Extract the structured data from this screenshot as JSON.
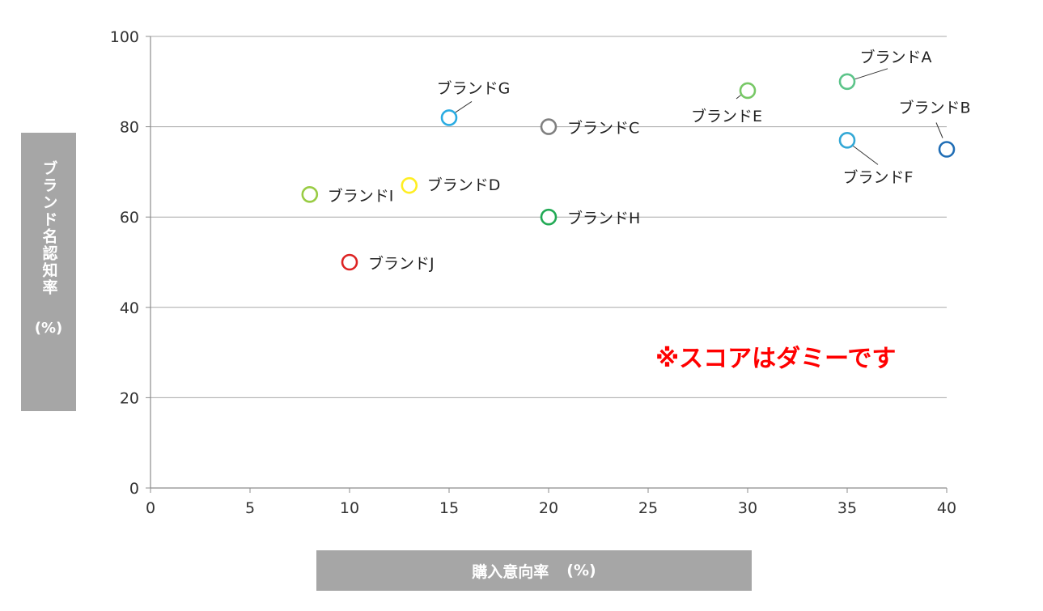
{
  "chart_data": {
    "type": "scatter",
    "title": "",
    "xlabel": "購入意向率",
    "xlabel_unit": "(%)",
    "ylabel": "ブランド名認知率",
    "ylabel_unit": "(%)",
    "xlim": [
      0,
      40
    ],
    "ylim": [
      0,
      100
    ],
    "x_ticks": [
      0,
      5,
      10,
      15,
      20,
      25,
      30,
      35,
      40
    ],
    "y_ticks": [
      0,
      20,
      40,
      60,
      80,
      100
    ],
    "x_tick_labels": [
      "0",
      "5",
      "10",
      "15",
      "20",
      "25",
      "30",
      "35",
      "40"
    ],
    "y_tick_labels": [
      "0",
      "20",
      "40",
      "60",
      "80",
      "100"
    ],
    "grid": "horizontal",
    "legend": "none",
    "annotation": "※スコアはダミーです",
    "annotation_color": "#ff0000",
    "points": [
      {
        "label": "ブランドA",
        "x": 35,
        "y": 90,
        "color": "#5cc489"
      },
      {
        "label": "ブランドB",
        "x": 40,
        "y": 75,
        "color": "#1f6db5"
      },
      {
        "label": "ブランドC",
        "x": 20,
        "y": 80,
        "color": "#808080"
      },
      {
        "label": "ブランドD",
        "x": 13,
        "y": 67,
        "color": "#ffee22"
      },
      {
        "label": "ブランドE",
        "x": 30,
        "y": 88,
        "color": "#77c866"
      },
      {
        "label": "ブランドF",
        "x": 35,
        "y": 77,
        "color": "#33a8d6"
      },
      {
        "label": "ブランドG",
        "x": 15,
        "y": 82,
        "color": "#2aace2"
      },
      {
        "label": "ブランドH",
        "x": 20,
        "y": 60,
        "color": "#22aa55"
      },
      {
        "label": "ブランドI",
        "x": 8,
        "y": 65,
        "color": "#99cc44"
      },
      {
        "label": "ブランドJ",
        "x": 10,
        "y": 50,
        "color": "#dd2222"
      }
    ]
  }
}
